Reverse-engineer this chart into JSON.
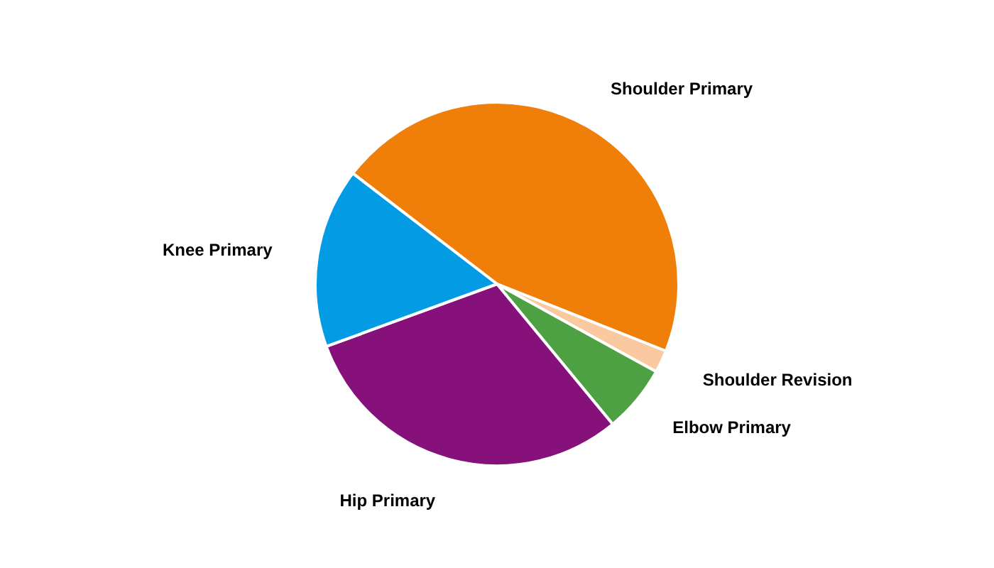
{
  "chart_data": {
    "type": "pie",
    "categories": [
      "Shoulder Primary",
      "Shoulder Revision",
      "Elbow Primary",
      "Hip Primary",
      "Knee Primary"
    ],
    "values": [
      45.6,
      2,
      6,
      30.4,
      16
    ],
    "colors": [
      "#f07f09",
      "#fbc9a0",
      "#4ea142",
      "#86117a",
      "#049be5"
    ]
  }
}
